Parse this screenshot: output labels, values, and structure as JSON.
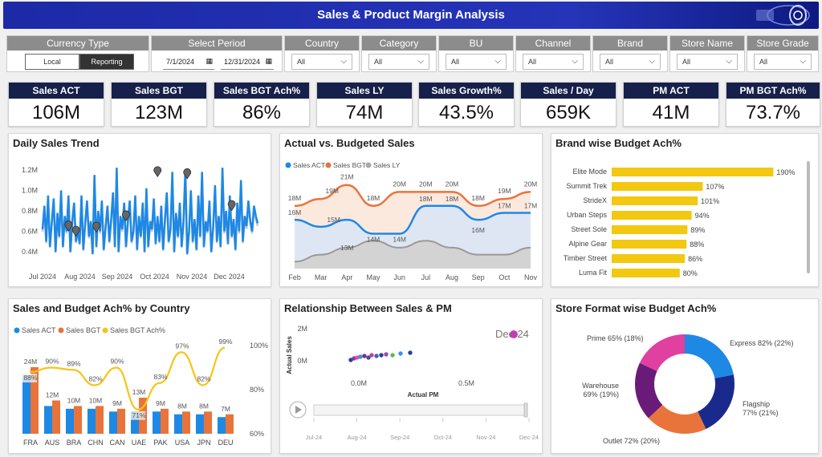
{
  "header": {
    "title": "Sales & Product Margin Analysis"
  },
  "filters": {
    "currency": {
      "label": "Currency Type",
      "options": [
        "Local",
        "Reporting"
      ]
    },
    "period": {
      "label": "Select Period",
      "start": "7/1/2024",
      "end": "12/31/2024"
    },
    "country": {
      "label": "Country",
      "value": "All"
    },
    "category": {
      "label": "Category",
      "value": "All"
    },
    "bu": {
      "label": "BU",
      "value": "All"
    },
    "channel": {
      "label": "Channel",
      "value": "All"
    },
    "brand": {
      "label": "Brand",
      "value": "All"
    },
    "store_name": {
      "label": "Store Name",
      "value": "All"
    },
    "store_grade": {
      "label": "Store Grade",
      "value": "All"
    }
  },
  "kpis": [
    {
      "label": "Sales ACT",
      "value": "106M"
    },
    {
      "label": "Sales BGT",
      "value": "123M"
    },
    {
      "label": "Sales BGT Ach%",
      "value": "86%"
    },
    {
      "label": "Sales LY",
      "value": "74M"
    },
    {
      "label": "Sales Growth%",
      "value": "43.5%"
    },
    {
      "label": "Sales / Day",
      "value": "659K"
    },
    {
      "label": "PM ACT",
      "value": "41M"
    },
    {
      "label": "PM BGT Ach%",
      "value": "73.7%"
    }
  ],
  "panels": {
    "daily": "Daily Sales Trend",
    "avb": "Actual vs. Budgeted Sales",
    "brand": "Brand wise Budget Ach%",
    "country": "Sales and Budget Ach% by Country",
    "relationship": "Relationship Between Sales & PM",
    "format": "Store Format wise Budget Ach%"
  },
  "colors": {
    "act": "#1e88e5",
    "bgt": "#e8743b",
    "ly": "#aaaaaa",
    "ach": "#f5c518",
    "navy": "#17204a",
    "gold": "#f2c811"
  },
  "chart_data": [
    {
      "id": "daily",
      "type": "line",
      "title": "Daily Sales Trend",
      "x_ticks": [
        "Jul 2024",
        "Aug 2024",
        "Sep 2024",
        "Oct 2024",
        "Nov 2024",
        "Dec 2024"
      ],
      "y_ticks": [
        "1.2M",
        "1.0M",
        "0.8M",
        "0.6M",
        "0.4M"
      ],
      "ylim": [
        0.3,
        1.3
      ],
      "series": [
        {
          "name": "Daily Sales",
          "values": [
            0.62,
            0.85,
            0.5,
            0.95,
            0.45,
            0.7,
            0.92,
            0.4,
            0.78,
            0.55,
            1.0,
            0.45,
            0.75,
            0.6,
            0.95,
            0.4,
            0.7,
            0.88,
            0.5,
            0.62,
            0.48,
            0.95,
            0.42,
            0.68,
            0.9,
            0.55,
            0.7,
            0.38,
            1.15,
            0.45,
            0.8,
            0.6,
            0.9,
            0.42,
            0.65,
            0.85,
            0.5,
            0.72,
            0.98,
            0.45,
            1.22,
            0.4,
            0.75,
            0.62,
            0.88,
            0.45,
            0.7,
            0.9,
            0.5,
            0.6,
            0.95,
            0.42,
            0.75,
            0.55,
            0.88,
            0.4,
            1.02,
            0.45,
            0.7,
            0.62,
            0.92,
            0.48,
            0.75,
            0.5,
            0.85,
            0.42,
            0.72,
            0.98,
            0.5,
            0.62,
            1.18,
            0.4,
            0.78,
            0.55,
            0.88,
            0.45,
            0.7,
            1.2,
            0.38,
            0.6,
            1.0,
            0.5,
            0.72,
            0.42,
            0.95,
            0.55,
            1.18,
            0.45,
            0.7,
            0.6,
            0.9,
            0.4,
            0.65,
            1.05,
            0.5,
            0.75,
            0.45,
            1.22,
            0.6,
            0.8,
            0.48,
            0.95,
            0.55,
            0.72,
            0.42,
            0.88,
            0.6,
            1.1,
            0.5,
            0.75,
            0.65,
            0.9,
            0.7,
            0.6,
            0.85,
            0.75,
            0.68
          ]
        }
      ],
      "markers": [
        0.65,
        0.6,
        0.64,
        0.75,
        1.18,
        1.16,
        0.85
      ]
    },
    {
      "id": "avb",
      "type": "area",
      "title": "Actual vs. Budgeted Sales",
      "categories": [
        "Feb",
        "Mar",
        "Apr",
        "May",
        "Jun",
        "Jul",
        "Aug",
        "Sep",
        "Oct",
        "Nov"
      ],
      "legend": [
        "Sales ACT",
        "Sales BGT",
        "Sales LY"
      ],
      "series": [
        {
          "name": "Sales ACT",
          "values": [
            16,
            15,
            16,
            14,
            14,
            18,
            18,
            16,
            17,
            17
          ]
        },
        {
          "name": "Sales BGT",
          "values": [
            18,
            19,
            21,
            18,
            20,
            20,
            20,
            18,
            19,
            20
          ]
        },
        {
          "name": "Sales LY",
          "values": [
            10,
            11,
            12,
            13,
            12,
            13,
            12,
            11,
            11,
            12
          ]
        }
      ],
      "labels": {
        "act": [
          "16M",
          "15M",
          "",
          "14M",
          "14M",
          "18M",
          "18M",
          "16M",
          "17M",
          "17M"
        ],
        "bgt": [
          "18M",
          "19M",
          "21M",
          "18M",
          "20M",
          "20M",
          "20M",
          "18M",
          "19M",
          "20M"
        ],
        "ly": [
          "",
          "",
          "13M",
          "",
          "",
          "",
          "",
          "",
          "",
          ""
        ]
      },
      "ylim": [
        9,
        22
      ]
    },
    {
      "id": "brand",
      "type": "bar",
      "title": "Brand wise Budget Ach%",
      "categories": [
        "Elite Mode",
        "Summit Trek",
        "StrideX",
        "Urban Steps",
        "Street Sole",
        "Alpine Gear",
        "Timber Street",
        "Luma Fit"
      ],
      "values": [
        190,
        107,
        101,
        94,
        89,
        88,
        86,
        80
      ],
      "labels": [
        "190%",
        "107%",
        "101%",
        "94%",
        "89%",
        "88%",
        "86%",
        "80%"
      ],
      "xlim": [
        0,
        200
      ]
    },
    {
      "id": "country",
      "type": "bar",
      "title": "Sales and Budget Ach% by Country",
      "legend": [
        "Sales ACT",
        "Sales BGT",
        "Sales BGT Ach%"
      ],
      "categories": [
        "FRA",
        "AUS",
        "BRA",
        "CHN",
        "CAN",
        "UAE",
        "PAK",
        "USA",
        "JPN",
        "DEU"
      ],
      "series": [
        {
          "name": "Sales ACT",
          "values": [
            21,
            10,
            9,
            9,
            8,
            8,
            8,
            7,
            7,
            6
          ]
        },
        {
          "name": "Sales BGT",
          "values": [
            24,
            12,
            10,
            10,
            9,
            13,
            9,
            8,
            8,
            7
          ]
        },
        {
          "name": "Sales BGT Ach%",
          "values": [
            88,
            90,
            89,
            82,
            90,
            71,
            83,
            97,
            82,
            99
          ]
        }
      ],
      "value_labels": [
        "24M",
        "12M",
        "10M",
        "10M",
        "9M",
        "13M",
        "9M",
        "8M",
        "8M",
        "7M"
      ],
      "ach_labels": [
        "88%",
        "90%",
        "89%",
        "82%",
        "90%",
        "71%",
        "83%",
        "97%",
        "82%",
        "99%"
      ],
      "y2_ticks": [
        "100%",
        "80%",
        "60%"
      ],
      "y2lim": [
        60,
        100
      ]
    },
    {
      "id": "relationship",
      "type": "scatter",
      "title": "Relationship Between Sales & PM",
      "xlabel": "Actual PM",
      "ylabel": "Actual Sales",
      "x_ticks": [
        "0.0M",
        "0.5M"
      ],
      "y_ticks": [
        "2M",
        "0M"
      ],
      "play_label": "Dec-24",
      "timeline": [
        "Jul-24",
        "Aug-24",
        "Sep-24",
        "Oct-24",
        "Nov-24",
        "Dec-24"
      ]
    },
    {
      "id": "format",
      "type": "pie",
      "title": "Store Format wise Budget Ach%",
      "slices": [
        {
          "name": "Express",
          "label": "Express 82% (22%)",
          "share": 22,
          "color": "#1e88e5"
        },
        {
          "name": "Flagship",
          "label": "Flagship 77% (21%)",
          "share": 21,
          "color": "#1a2a8c"
        },
        {
          "name": "Outlet",
          "label": "Outlet 72% (20%)",
          "share": 20,
          "color": "#e8743b"
        },
        {
          "name": "Warehouse",
          "label": "Warehouse 69% (19%)",
          "share": 19,
          "color": "#6a1b7a"
        },
        {
          "name": "Prime",
          "label": "Prime 65% (18%)",
          "share": 18,
          "color": "#e040a0"
        }
      ]
    }
  ]
}
